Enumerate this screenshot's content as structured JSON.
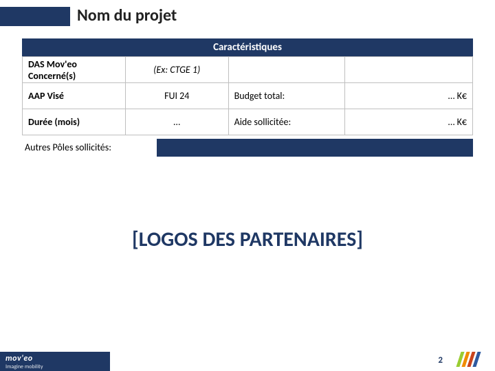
{
  "title": "Nom du projet",
  "header": "Caractéristiques",
  "rows": {
    "das": {
      "label": "DAS Mov'eo Concerné(s)",
      "value": "(Ex: CTGE 1)",
      "label2": "",
      "value2": ""
    },
    "aap": {
      "label": "AAP Visé",
      "value": "FUI 24",
      "label2": "Budget total:",
      "value2": "… K€"
    },
    "duree": {
      "label": "Durée (mois)",
      "value": "…",
      "label2": "Aide sollicitée:",
      "value2": "… K€"
    }
  },
  "autres_label": "Autres Pôles sollicités:",
  "logos_placeholder": "[LOGOS DES PARTENAIRES]",
  "footer": {
    "brand": "mov'eo",
    "tagline": "Imagine mobility"
  },
  "page_number": "2",
  "colors": {
    "primary": "#1f3864",
    "stripe1": "#9acd32",
    "stripe2": "#f08c00",
    "stripe3": "#c9441d",
    "stripe4": "#2e5aa0"
  }
}
